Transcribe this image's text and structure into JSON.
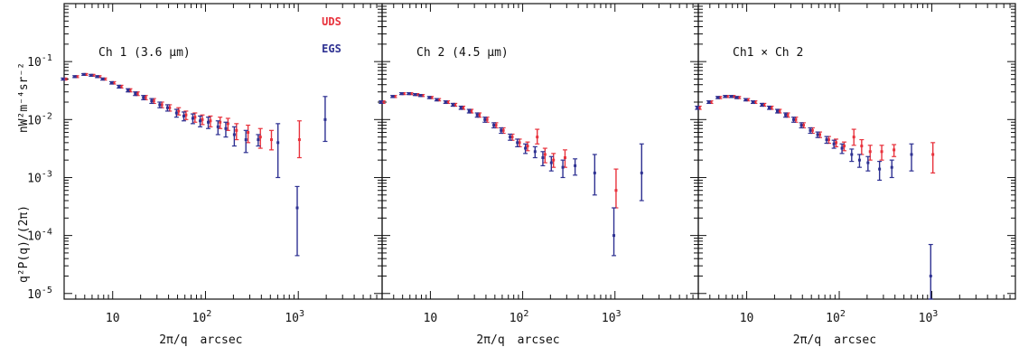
{
  "figure": {
    "ylabel_lines": [
      "nW²m⁻⁴sr⁻²",
      "q²P(q)/(2π)"
    ],
    "xlabel_parts": [
      "2π/q",
      "arcsec"
    ],
    "xtick_labels": [
      {
        "value": 10,
        "base": "10",
        "exp": ""
      },
      {
        "value": 100,
        "base": "10",
        "exp": "2"
      },
      {
        "value": 1000,
        "base": "10",
        "exp": "3"
      }
    ],
    "ytick_labels": [
      {
        "value": 0.1,
        "base": "10",
        "exp": "-1"
      },
      {
        "value": 0.01,
        "base": "10",
        "exp": "-2"
      },
      {
        "value": 0.001,
        "base": "10",
        "exp": "-3"
      },
      {
        "value": 0.0001,
        "base": "10",
        "exp": "-4"
      },
      {
        "value": 1e-05,
        "base": "10",
        "exp": "-5"
      }
    ],
    "colors": {
      "UDS": "#e8323c",
      "EGS": "#2e3192",
      "axis": "#111111"
    }
  },
  "legend": [
    {
      "label": "UDS",
      "color": "#e8323c"
    },
    {
      "label": "EGS",
      "color": "#2e3192"
    }
  ],
  "chart_data": [
    {
      "type": "scatter",
      "title": "Ch 1 (3.6 μm)",
      "xscale": "log",
      "yscale": "log",
      "xlim": [
        3,
        8000
      ],
      "ylim": [
        8e-06,
        1
      ],
      "series": [
        {
          "name": "UDS",
          "color": "#e8323c",
          "x": [
            3,
            4,
            5,
            6,
            7,
            8,
            10,
            12,
            15,
            18,
            22,
            27,
            33,
            40,
            50,
            60,
            75,
            90,
            110,
            140,
            170,
            210,
            280,
            380,
            500,
            1000
          ],
          "y": [
            0.05,
            0.055,
            0.06,
            0.058,
            0.055,
            0.05,
            0.043,
            0.037,
            0.032,
            0.028,
            0.024,
            0.021,
            0.018,
            0.016,
            0.014,
            0.012,
            0.011,
            0.01,
            0.0095,
            0.009,
            0.0085,
            0.0065,
            0.006,
            0.005,
            0.0045,
            0.0045
          ],
          "ylow": [
            0.048,
            0.053,
            0.058,
            0.056,
            0.053,
            0.048,
            0.041,
            0.035,
            0.03,
            0.026,
            0.022,
            0.019,
            0.016,
            0.014,
            0.012,
            0.01,
            0.009,
            0.0082,
            0.0075,
            0.007,
            0.0065,
            0.0045,
            0.004,
            0.0032,
            0.003,
            0.0022
          ],
          "yhigh": [
            0.052,
            0.057,
            0.062,
            0.06,
            0.057,
            0.052,
            0.045,
            0.039,
            0.034,
            0.03,
            0.026,
            0.023,
            0.02,
            0.018,
            0.016,
            0.014,
            0.013,
            0.012,
            0.0115,
            0.011,
            0.0105,
            0.0085,
            0.008,
            0.007,
            0.0065,
            0.0095
          ]
        },
        {
          "name": "EGS",
          "color": "#2e3192",
          "x": [
            3,
            4,
            5,
            6,
            7,
            8,
            10,
            12,
            15,
            18,
            22,
            27,
            33,
            40,
            50,
            60,
            75,
            90,
            110,
            140,
            170,
            210,
            280,
            380,
            620,
            1000,
            2000
          ],
          "y": [
            0.05,
            0.055,
            0.06,
            0.058,
            0.055,
            0.05,
            0.043,
            0.037,
            0.032,
            0.028,
            0.024,
            0.021,
            0.018,
            0.016,
            0.013,
            0.0115,
            0.0105,
            0.0095,
            0.009,
            0.0075,
            0.007,
            0.0055,
            0.0045,
            0.0045,
            0.004,
            0.0003,
            0.01
          ],
          "ylow": [
            0.048,
            0.053,
            0.058,
            0.056,
            0.053,
            0.048,
            0.041,
            0.035,
            0.03,
            0.026,
            0.022,
            0.019,
            0.016,
            0.014,
            0.011,
            0.0095,
            0.0085,
            0.0075,
            0.007,
            0.0055,
            0.005,
            0.0035,
            0.0027,
            0.0035,
            0.001,
            4.5e-05,
            0.0042
          ],
          "yhigh": [
            0.052,
            0.057,
            0.062,
            0.06,
            0.057,
            0.052,
            0.045,
            0.039,
            0.034,
            0.03,
            0.026,
            0.023,
            0.02,
            0.018,
            0.015,
            0.0135,
            0.0125,
            0.0115,
            0.011,
            0.0095,
            0.009,
            0.0075,
            0.0065,
            0.0055,
            0.0085,
            0.0007,
            0.025
          ]
        }
      ]
    },
    {
      "type": "scatter",
      "title": "Ch 2 (4.5 μm)",
      "xscale": "log",
      "yscale": "log",
      "xlim": [
        3,
        8000
      ],
      "ylim": [
        8e-06,
        1
      ],
      "series": [
        {
          "name": "UDS",
          "color": "#e8323c",
          "x": [
            3,
            4,
            5,
            6,
            7,
            8,
            10,
            12,
            15,
            18,
            22,
            27,
            33,
            40,
            50,
            60,
            75,
            90,
            110,
            140,
            170,
            210,
            280,
            1000
          ],
          "y": [
            0.02,
            0.025,
            0.028,
            0.028,
            0.027,
            0.026,
            0.024,
            0.022,
            0.02,
            0.018,
            0.016,
            0.014,
            0.012,
            0.01,
            0.008,
            0.0065,
            0.005,
            0.004,
            0.0035,
            0.005,
            0.0025,
            0.002,
            0.0022,
            0.0006
          ],
          "ylow": [
            0.019,
            0.024,
            0.027,
            0.027,
            0.026,
            0.025,
            0.023,
            0.021,
            0.019,
            0.017,
            0.015,
            0.013,
            0.011,
            0.009,
            0.0072,
            0.0058,
            0.0044,
            0.0034,
            0.0029,
            0.0038,
            0.0018,
            0.0015,
            0.0015,
            0.0003
          ],
          "yhigh": [
            0.021,
            0.026,
            0.029,
            0.029,
            0.028,
            0.027,
            0.025,
            0.023,
            0.021,
            0.019,
            0.017,
            0.015,
            0.013,
            0.011,
            0.0088,
            0.0072,
            0.0056,
            0.0046,
            0.0041,
            0.0068,
            0.0032,
            0.0026,
            0.003,
            0.0014
          ]
        },
        {
          "name": "EGS",
          "color": "#2e3192",
          "x": [
            3,
            4,
            5,
            6,
            7,
            8,
            10,
            12,
            15,
            18,
            22,
            27,
            33,
            40,
            50,
            60,
            75,
            90,
            110,
            140,
            170,
            210,
            280,
            380,
            620,
            1000,
            2000
          ],
          "y": [
            0.02,
            0.025,
            0.028,
            0.028,
            0.027,
            0.026,
            0.024,
            0.022,
            0.02,
            0.018,
            0.016,
            0.014,
            0.012,
            0.01,
            0.008,
            0.0065,
            0.005,
            0.004,
            0.0032,
            0.0028,
            0.0022,
            0.0018,
            0.0015,
            0.0016,
            0.0012,
            0.0001,
            0.0012
          ],
          "ylow": [
            0.019,
            0.024,
            0.027,
            0.027,
            0.026,
            0.025,
            0.023,
            0.021,
            0.019,
            0.017,
            0.015,
            0.013,
            0.011,
            0.009,
            0.0072,
            0.0058,
            0.0044,
            0.0034,
            0.0026,
            0.0022,
            0.0016,
            0.0013,
            0.001,
            0.0011,
            0.0005,
            4.5e-05,
            0.0004
          ],
          "yhigh": [
            0.021,
            0.026,
            0.029,
            0.029,
            0.028,
            0.027,
            0.025,
            0.023,
            0.021,
            0.019,
            0.017,
            0.015,
            0.013,
            0.011,
            0.0088,
            0.0072,
            0.0056,
            0.0046,
            0.0038,
            0.0034,
            0.0028,
            0.0023,
            0.002,
            0.0021,
            0.0025,
            0.0003,
            0.0038
          ]
        }
      ]
    },
    {
      "type": "scatter",
      "title": "Ch1 × Ch 2",
      "xscale": "log",
      "yscale": "log",
      "xlim": [
        3,
        8000
      ],
      "ylim": [
        8e-06,
        1
      ],
      "series": [
        {
          "name": "UDS",
          "color": "#e8323c",
          "x": [
            3,
            4,
            5,
            6,
            7,
            8,
            10,
            12,
            15,
            18,
            22,
            27,
            33,
            40,
            50,
            60,
            75,
            90,
            110,
            140,
            170,
            210,
            280,
            380,
            1000
          ],
          "y": [
            0.016,
            0.02,
            0.024,
            0.025,
            0.025,
            0.024,
            0.022,
            0.02,
            0.018,
            0.016,
            0.014,
            0.012,
            0.01,
            0.008,
            0.0065,
            0.0055,
            0.0045,
            0.004,
            0.0035,
            0.005,
            0.0035,
            0.0028,
            0.0028,
            0.003,
            0.0025
          ],
          "ylow": [
            0.015,
            0.019,
            0.023,
            0.024,
            0.024,
            0.023,
            0.021,
            0.019,
            0.017,
            0.015,
            0.013,
            0.011,
            0.009,
            0.0072,
            0.0058,
            0.0049,
            0.0039,
            0.0034,
            0.0029,
            0.0036,
            0.0025,
            0.002,
            0.002,
            0.0023,
            0.0012
          ],
          "yhigh": [
            0.017,
            0.021,
            0.025,
            0.026,
            0.026,
            0.025,
            0.023,
            0.021,
            0.019,
            0.017,
            0.015,
            0.013,
            0.011,
            0.0088,
            0.0072,
            0.0061,
            0.0051,
            0.0046,
            0.0041,
            0.0068,
            0.0045,
            0.0036,
            0.0036,
            0.0037,
            0.004
          ]
        },
        {
          "name": "EGS",
          "color": "#2e3192",
          "x": [
            3,
            4,
            5,
            6,
            7,
            8,
            10,
            12,
            15,
            18,
            22,
            27,
            33,
            40,
            50,
            60,
            75,
            90,
            110,
            140,
            170,
            210,
            280,
            380,
            620,
            1000
          ],
          "y": [
            0.016,
            0.02,
            0.024,
            0.025,
            0.025,
            0.024,
            0.022,
            0.02,
            0.018,
            0.016,
            0.014,
            0.012,
            0.01,
            0.008,
            0.0065,
            0.0055,
            0.0045,
            0.0038,
            0.0032,
            0.0025,
            0.002,
            0.0018,
            0.0014,
            0.0015,
            0.0025,
            2e-05
          ],
          "ylow": [
            0.015,
            0.019,
            0.023,
            0.024,
            0.024,
            0.023,
            0.021,
            0.019,
            0.017,
            0.015,
            0.013,
            0.011,
            0.009,
            0.0072,
            0.0058,
            0.0049,
            0.0039,
            0.0032,
            0.0026,
            0.0019,
            0.0015,
            0.0013,
            0.0009,
            0.001,
            0.0013,
            8e-06
          ],
          "yhigh": [
            0.017,
            0.021,
            0.025,
            0.026,
            0.026,
            0.025,
            0.023,
            0.021,
            0.019,
            0.017,
            0.015,
            0.013,
            0.011,
            0.0088,
            0.0072,
            0.0061,
            0.0051,
            0.0044,
            0.0038,
            0.0031,
            0.0025,
            0.0023,
            0.0019,
            0.002,
            0.0038,
            7e-05
          ]
        }
      ]
    }
  ]
}
